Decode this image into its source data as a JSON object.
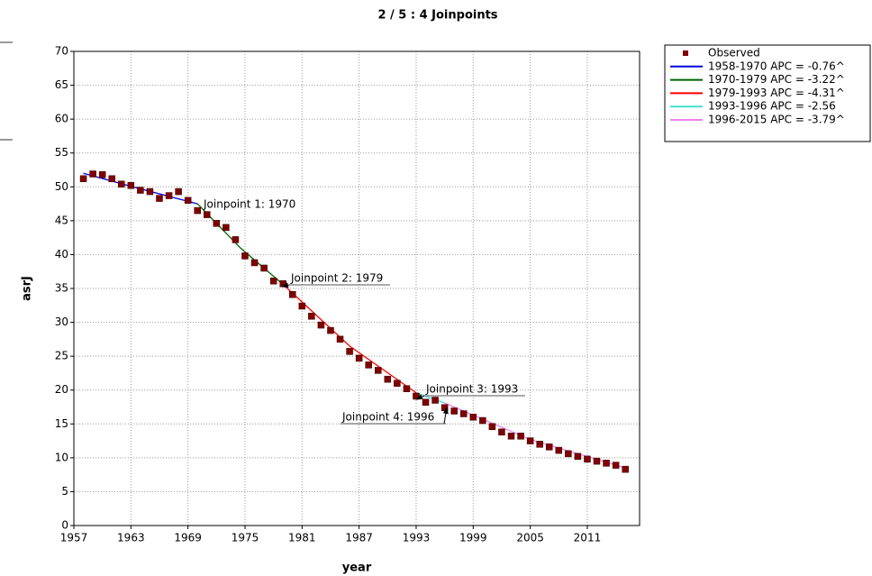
{
  "chart_data": {
    "type": "line",
    "title": "2 / 5 : 4 Joinpoints",
    "x_label": "year",
    "y_label": "asrJ",
    "xlim": [
      1957,
      2016.5
    ],
    "xticks": [
      1957,
      1963,
      1969,
      1975,
      1981,
      1987,
      1993,
      1999,
      2005,
      2011
    ],
    "ylim": [
      0,
      70
    ],
    "yticks": [
      0,
      5,
      10,
      15,
      20,
      25,
      30,
      35,
      40,
      45,
      50,
      55,
      60,
      65,
      70
    ],
    "grid": true,
    "legend": "right",
    "observed": {
      "name": "Observed",
      "color": "#7f0000",
      "x": [
        1958,
        1959,
        1960,
        1961,
        1962,
        1963,
        1964,
        1965,
        1966,
        1967,
        1968,
        1969,
        1970,
        1971,
        1972,
        1973,
        1974,
        1975,
        1976,
        1977,
        1978,
        1979,
        1980,
        1981,
        1982,
        1983,
        1984,
        1985,
        1986,
        1987,
        1988,
        1989,
        1990,
        1991,
        1992,
        1993,
        1994,
        1995,
        1996,
        1997,
        1998,
        1999,
        2000,
        2001,
        2002,
        2003,
        2004,
        2005,
        2006,
        2007,
        2008,
        2009,
        2010,
        2011,
        2012,
        2013,
        2014,
        2015
      ],
      "values": [
        51.2,
        51.9,
        51.8,
        51.2,
        50.4,
        50.2,
        49.5,
        49.3,
        48.3,
        48.7,
        49.3,
        48.0,
        46.5,
        45.9,
        44.6,
        44.0,
        42.2,
        39.8,
        38.8,
        38.0,
        36.1,
        35.7,
        34.1,
        32.4,
        30.9,
        29.6,
        28.8,
        27.5,
        25.7,
        24.7,
        23.7,
        22.9,
        21.6,
        21.0,
        20.2,
        19.1,
        18.2,
        18.5,
        17.4,
        16.9,
        16.5,
        16.0,
        15.5,
        14.6,
        13.8,
        13.2,
        13.2,
        12.5,
        12.0,
        11.6,
        11.1,
        10.6,
        10.2,
        9.8,
        9.5,
        9.2,
        8.9,
        8.3
      ]
    },
    "series": [
      {
        "name": "1958-1970 APC  = -0.76^",
        "color": "#0000e0",
        "x": [
          1958,
          1964,
          1970
        ],
        "values": [
          52.0,
          49.7,
          47.5
        ]
      },
      {
        "name": "1970-1979 APC  = -3.22^",
        "color": "#006400",
        "x": [
          1970,
          1974.5,
          1979
        ],
        "values": [
          47.5,
          41.0,
          35.6
        ]
      },
      {
        "name": "1979-1993 APC  = -4.31^",
        "color": "#ff0000",
        "x": [
          1979,
          1986,
          1993
        ],
        "values": [
          35.6,
          26.5,
          19.6
        ]
      },
      {
        "name": "1993-1996 APC  = -2.56",
        "color": "#40e0d0",
        "x": [
          1993,
          1996
        ],
        "values": [
          19.6,
          18.1
        ]
      },
      {
        "name": "1996-2015 APC  = -3.79^",
        "color": "#ee82ee",
        "x": [
          1996,
          2005,
          2015
        ],
        "values": [
          18.1,
          12.7,
          8.5
        ]
      }
    ],
    "annotations": [
      "Joinpoint 1:  1970",
      "Joinpoint 2:  1979",
      "Joinpoint 3:  1993",
      "Joinpoint 4:  1996"
    ]
  }
}
